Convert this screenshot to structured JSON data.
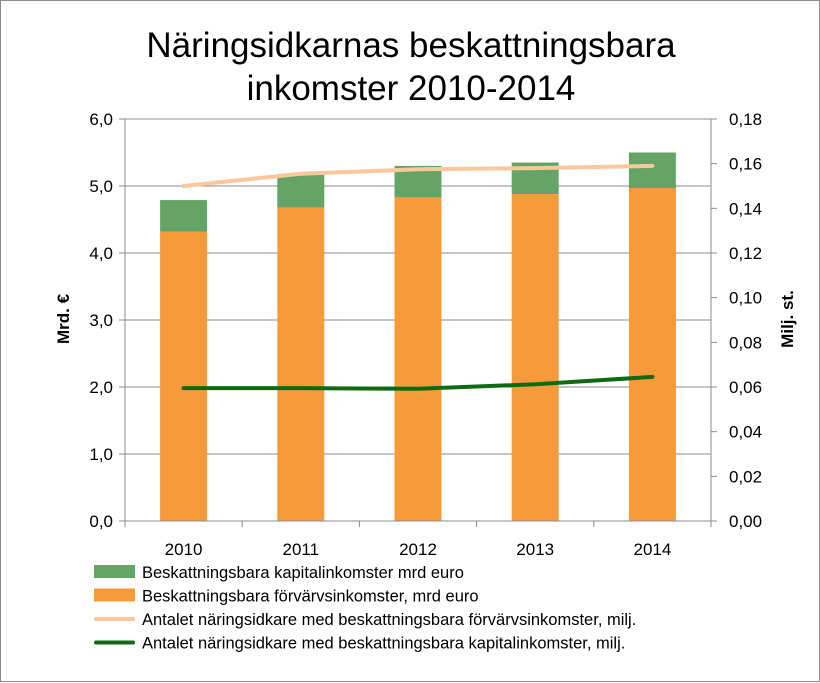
{
  "chart_data": {
    "type": "bar",
    "title_lines": [
      "Näringsidkarnas beskattningsbara",
      "inkomster 2010-2014"
    ],
    "categories": [
      "2010",
      "2011",
      "2012",
      "2013",
      "2014"
    ],
    "ylabel": "Mrd. €",
    "y2label": "Milj. st.",
    "ylim": [
      0,
      6
    ],
    "y2lim": [
      0,
      0.18
    ],
    "yticks": [
      "0,0",
      "1,0",
      "2,0",
      "3,0",
      "4,0",
      "5,0",
      "6,0"
    ],
    "y2ticks": [
      "0,00",
      "0,02",
      "0,04",
      "0,06",
      "0,08",
      "0,10",
      "0,12",
      "0,14",
      "0,16",
      "0,18"
    ],
    "grid": true,
    "stacked": true,
    "series": [
      {
        "name": "Beskattningsbara förvärvsinkomster, mrd  euro",
        "type": "bar",
        "axis": "left",
        "color": "#f79a3b",
        "values": [
          4.32,
          4.68,
          4.83,
          4.88,
          4.97
        ]
      },
      {
        "name": "Beskattningsbara kapitalinkomster mrd  euro",
        "type": "bar",
        "axis": "left",
        "color": "#65a467",
        "values": [
          0.47,
          0.5,
          0.47,
          0.47,
          0.53
        ]
      },
      {
        "name": "Antalet näringsidkare med beskattningsbara förvärvsinkomster, milj.",
        "type": "line",
        "axis": "right",
        "color": "#fcc89b",
        "values": [
          0.15,
          0.1555,
          0.1575,
          0.158,
          0.159
        ]
      },
      {
        "name": "Antalet näringsidkare med beskattningsbara kapitalinkomster, milj.",
        "type": "line",
        "axis": "right",
        "color": "#0f6b12",
        "values": [
          0.0595,
          0.0595,
          0.0592,
          0.0612,
          0.0645
        ]
      }
    ],
    "legend_order": [
      1,
      0,
      2,
      3
    ],
    "legend_position": "bottom"
  }
}
